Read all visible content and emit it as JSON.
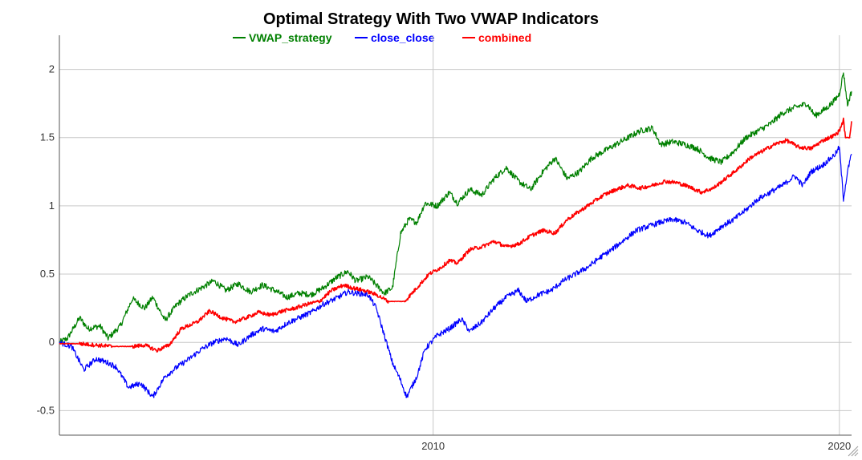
{
  "chart_data": {
    "type": "line",
    "title": "Optimal Strategy With Two VWAP Indicators",
    "xlabel": "",
    "ylabel": "",
    "xlim": [
      2000.8,
      2020.3
    ],
    "ylim": [
      -0.68,
      2.25
    ],
    "x_ticks": [
      {
        "value": 2010,
        "label": "2010"
      },
      {
        "value": 2020,
        "label": "2020"
      }
    ],
    "y_ticks": [
      {
        "value": -0.5,
        "label": "-0.5"
      },
      {
        "value": 0,
        "label": "0"
      },
      {
        "value": 0.5,
        "label": "0.5"
      },
      {
        "value": 1,
        "label": "1"
      },
      {
        "value": 1.5,
        "label": "1.5"
      },
      {
        "value": 2,
        "label": "2"
      }
    ],
    "grid": true,
    "legend_position": "top-center",
    "series": [
      {
        "name": "VWAP_strategy",
        "color": "#008000",
        "points": [
          [
            2000.8,
            0.0
          ],
          [
            2001.0,
            0.03
          ],
          [
            2001.3,
            0.18
          ],
          [
            2001.5,
            0.1
          ],
          [
            2001.8,
            0.12
          ],
          [
            2002.0,
            0.03
          ],
          [
            2002.3,
            0.12
          ],
          [
            2002.6,
            0.32
          ],
          [
            2002.9,
            0.25
          ],
          [
            2003.1,
            0.33
          ],
          [
            2003.4,
            0.16
          ],
          [
            2003.7,
            0.28
          ],
          [
            2004.0,
            0.35
          ],
          [
            2004.3,
            0.4
          ],
          [
            2004.6,
            0.45
          ],
          [
            2004.9,
            0.38
          ],
          [
            2005.2,
            0.43
          ],
          [
            2005.5,
            0.37
          ],
          [
            2005.8,
            0.42
          ],
          [
            2006.1,
            0.38
          ],
          [
            2006.4,
            0.33
          ],
          [
            2006.7,
            0.36
          ],
          [
            2007.0,
            0.35
          ],
          [
            2007.3,
            0.4
          ],
          [
            2007.6,
            0.47
          ],
          [
            2007.9,
            0.52
          ],
          [
            2008.1,
            0.45
          ],
          [
            2008.4,
            0.48
          ],
          [
            2008.6,
            0.42
          ],
          [
            2008.8,
            0.36
          ],
          [
            2009.0,
            0.4
          ],
          [
            2009.2,
            0.8
          ],
          [
            2009.4,
            0.9
          ],
          [
            2009.6,
            0.88
          ],
          [
            2009.8,
            1.02
          ],
          [
            2010.1,
            1.0
          ],
          [
            2010.4,
            1.1
          ],
          [
            2010.6,
            1.02
          ],
          [
            2010.9,
            1.12
          ],
          [
            2011.2,
            1.08
          ],
          [
            2011.5,
            1.2
          ],
          [
            2011.8,
            1.28
          ],
          [
            2012.1,
            1.18
          ],
          [
            2012.4,
            1.12
          ],
          [
            2012.7,
            1.25
          ],
          [
            2013.0,
            1.35
          ],
          [
            2013.3,
            1.2
          ],
          [
            2013.6,
            1.25
          ],
          [
            2013.9,
            1.35
          ],
          [
            2014.2,
            1.4
          ],
          [
            2014.5,
            1.45
          ],
          [
            2014.8,
            1.5
          ],
          [
            2015.1,
            1.55
          ],
          [
            2015.4,
            1.57
          ],
          [
            2015.6,
            1.45
          ],
          [
            2015.9,
            1.47
          ],
          [
            2016.2,
            1.45
          ],
          [
            2016.5,
            1.42
          ],
          [
            2016.8,
            1.35
          ],
          [
            2017.1,
            1.32
          ],
          [
            2017.4,
            1.4
          ],
          [
            2017.7,
            1.5
          ],
          [
            2018.0,
            1.55
          ],
          [
            2018.3,
            1.6
          ],
          [
            2018.6,
            1.68
          ],
          [
            2018.9,
            1.72
          ],
          [
            2019.2,
            1.75
          ],
          [
            2019.4,
            1.66
          ],
          [
            2019.7,
            1.72
          ],
          [
            2019.9,
            1.78
          ],
          [
            2020.0,
            1.82
          ],
          [
            2020.1,
            1.98
          ],
          [
            2020.2,
            1.74
          ],
          [
            2020.3,
            1.84
          ]
        ]
      },
      {
        "name": "close_close",
        "color": "#0000ff",
        "points": [
          [
            2000.8,
            0.0
          ],
          [
            2001.1,
            -0.03
          ],
          [
            2001.4,
            -0.2
          ],
          [
            2001.7,
            -0.12
          ],
          [
            2002.0,
            -0.15
          ],
          [
            2002.2,
            -0.18
          ],
          [
            2002.5,
            -0.33
          ],
          [
            2002.8,
            -0.3
          ],
          [
            2003.1,
            -0.4
          ],
          [
            2003.4,
            -0.25
          ],
          [
            2003.7,
            -0.18
          ],
          [
            2004.0,
            -0.12
          ],
          [
            2004.3,
            -0.05
          ],
          [
            2004.6,
            0.0
          ],
          [
            2004.9,
            0.03
          ],
          [
            2005.2,
            -0.02
          ],
          [
            2005.5,
            0.05
          ],
          [
            2005.8,
            0.1
          ],
          [
            2006.1,
            0.08
          ],
          [
            2006.4,
            0.14
          ],
          [
            2006.7,
            0.18
          ],
          [
            2007.0,
            0.22
          ],
          [
            2007.3,
            0.28
          ],
          [
            2007.6,
            0.32
          ],
          [
            2007.9,
            0.37
          ],
          [
            2008.1,
            0.36
          ],
          [
            2008.4,
            0.35
          ],
          [
            2008.6,
            0.25
          ],
          [
            2008.8,
            0.05
          ],
          [
            2009.0,
            -0.15
          ],
          [
            2009.2,
            -0.28
          ],
          [
            2009.35,
            -0.4
          ],
          [
            2009.6,
            -0.25
          ],
          [
            2009.8,
            -0.05
          ],
          [
            2010.1,
            0.05
          ],
          [
            2010.4,
            0.1
          ],
          [
            2010.7,
            0.17
          ],
          [
            2010.9,
            0.08
          ],
          [
            2011.2,
            0.15
          ],
          [
            2011.5,
            0.25
          ],
          [
            2011.8,
            0.33
          ],
          [
            2012.1,
            0.38
          ],
          [
            2012.3,
            0.3
          ],
          [
            2012.6,
            0.35
          ],
          [
            2012.9,
            0.38
          ],
          [
            2013.2,
            0.45
          ],
          [
            2013.5,
            0.5
          ],
          [
            2013.8,
            0.55
          ],
          [
            2014.1,
            0.62
          ],
          [
            2014.4,
            0.68
          ],
          [
            2014.7,
            0.75
          ],
          [
            2015.0,
            0.82
          ],
          [
            2015.3,
            0.85
          ],
          [
            2015.6,
            0.88
          ],
          [
            2015.9,
            0.9
          ],
          [
            2016.2,
            0.88
          ],
          [
            2016.5,
            0.82
          ],
          [
            2016.8,
            0.78
          ],
          [
            2017.1,
            0.85
          ],
          [
            2017.4,
            0.9
          ],
          [
            2017.7,
            0.97
          ],
          [
            2018.0,
            1.05
          ],
          [
            2018.3,
            1.1
          ],
          [
            2018.6,
            1.15
          ],
          [
            2018.9,
            1.22
          ],
          [
            2019.1,
            1.15
          ],
          [
            2019.3,
            1.25
          ],
          [
            2019.6,
            1.3
          ],
          [
            2019.9,
            1.38
          ],
          [
            2020.0,
            1.43
          ],
          [
            2020.1,
            1.05
          ],
          [
            2020.2,
            1.25
          ],
          [
            2020.3,
            1.38
          ]
        ]
      },
      {
        "name": "combined",
        "color": "#ff0000",
        "points": [
          [
            2000.8,
            -0.01
          ],
          [
            2001.3,
            -0.01
          ],
          [
            2001.7,
            -0.02
          ],
          [
            2002.1,
            -0.03
          ],
          [
            2002.6,
            -0.03
          ],
          [
            2002.9,
            -0.02
          ],
          [
            2003.2,
            -0.06
          ],
          [
            2003.5,
            -0.02
          ],
          [
            2003.8,
            0.1
          ],
          [
            2004.2,
            0.15
          ],
          [
            2004.5,
            0.23
          ],
          [
            2004.8,
            0.18
          ],
          [
            2005.1,
            0.15
          ],
          [
            2005.4,
            0.18
          ],
          [
            2005.7,
            0.22
          ],
          [
            2006.0,
            0.2
          ],
          [
            2006.3,
            0.23
          ],
          [
            2006.6,
            0.25
          ],
          [
            2006.9,
            0.28
          ],
          [
            2007.2,
            0.3
          ],
          [
            2007.5,
            0.38
          ],
          [
            2007.8,
            0.42
          ],
          [
            2008.0,
            0.4
          ],
          [
            2008.3,
            0.38
          ],
          [
            2008.6,
            0.35
          ],
          [
            2008.9,
            0.3
          ],
          [
            2009.3,
            0.3
          ],
          [
            2009.6,
            0.4
          ],
          [
            2009.9,
            0.5
          ],
          [
            2010.2,
            0.55
          ],
          [
            2010.4,
            0.6
          ],
          [
            2010.6,
            0.58
          ],
          [
            2010.9,
            0.68
          ],
          [
            2011.2,
            0.7
          ],
          [
            2011.5,
            0.74
          ],
          [
            2011.8,
            0.7
          ],
          [
            2012.1,
            0.72
          ],
          [
            2012.4,
            0.78
          ],
          [
            2012.7,
            0.82
          ],
          [
            2013.0,
            0.8
          ],
          [
            2013.3,
            0.9
          ],
          [
            2013.6,
            0.96
          ],
          [
            2013.9,
            1.02
          ],
          [
            2014.2,
            1.08
          ],
          [
            2014.5,
            1.12
          ],
          [
            2014.8,
            1.15
          ],
          [
            2015.1,
            1.13
          ],
          [
            2015.4,
            1.15
          ],
          [
            2015.7,
            1.18
          ],
          [
            2016.0,
            1.17
          ],
          [
            2016.3,
            1.14
          ],
          [
            2016.6,
            1.1
          ],
          [
            2016.9,
            1.13
          ],
          [
            2017.2,
            1.2
          ],
          [
            2017.5,
            1.27
          ],
          [
            2017.8,
            1.35
          ],
          [
            2018.1,
            1.4
          ],
          [
            2018.4,
            1.45
          ],
          [
            2018.7,
            1.48
          ],
          [
            2019.0,
            1.43
          ],
          [
            2019.3,
            1.42
          ],
          [
            2019.6,
            1.48
          ],
          [
            2019.9,
            1.52
          ],
          [
            2020.0,
            1.55
          ],
          [
            2020.1,
            1.63
          ],
          [
            2020.15,
            1.5
          ],
          [
            2020.25,
            1.5
          ],
          [
            2020.3,
            1.62
          ]
        ]
      }
    ]
  }
}
